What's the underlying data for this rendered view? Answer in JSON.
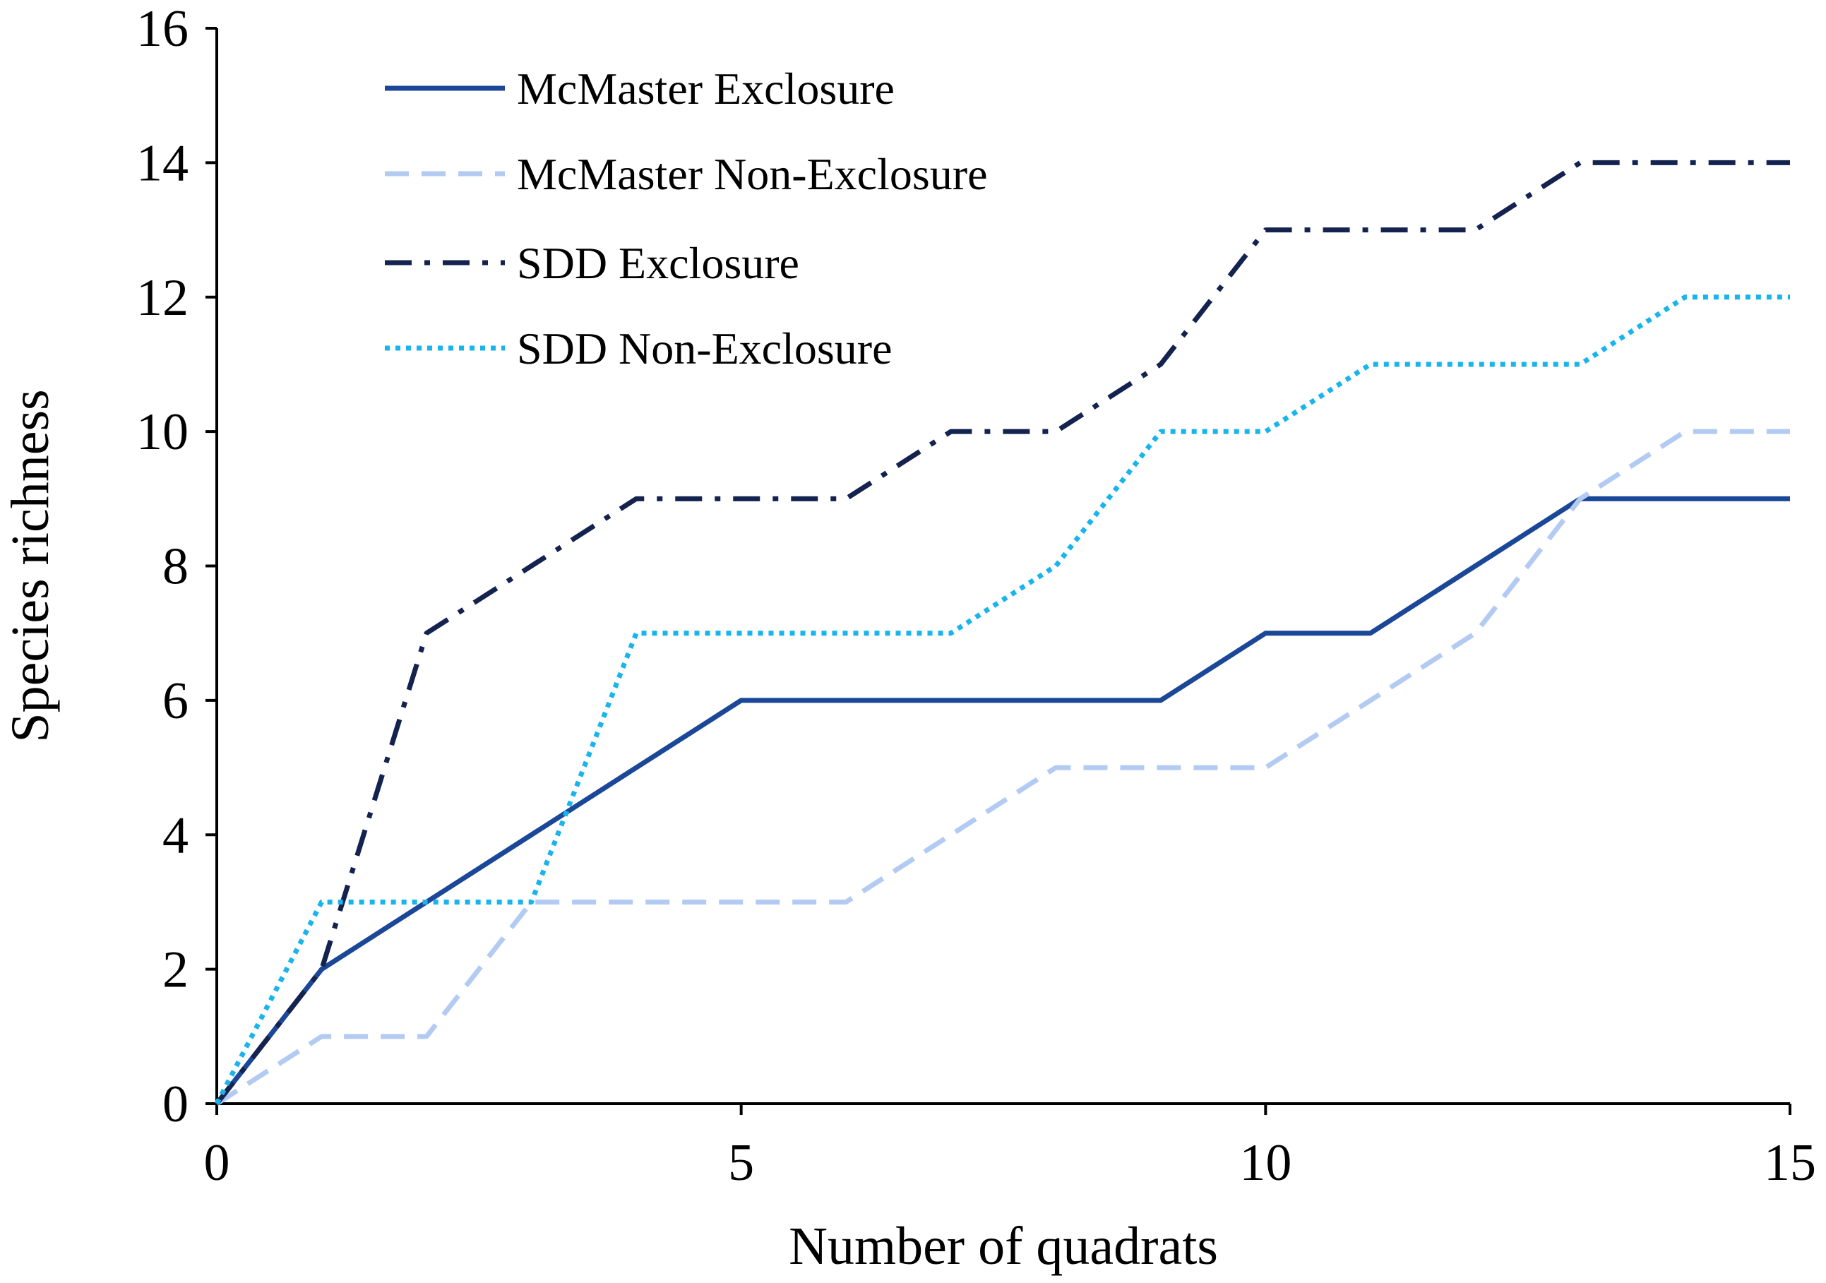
{
  "chart_data": {
    "type": "line",
    "title": "",
    "xlabel": "Number of quadrats",
    "ylabel": "Species richness",
    "xlim": [
      0,
      15
    ],
    "ylim": [
      0,
      16
    ],
    "xticks": [
      0,
      5,
      10,
      15
    ],
    "yticks": [
      0,
      2,
      4,
      6,
      8,
      10,
      12,
      14,
      16
    ],
    "grid": false,
    "legend_position": "top-left",
    "x": [
      0,
      1,
      2,
      3,
      4,
      5,
      6,
      7,
      8,
      9,
      10,
      11,
      12,
      13,
      14,
      15
    ],
    "series": [
      {
        "name": "McMaster Exclosure",
        "values": [
          0,
          2,
          3,
          4,
          5,
          6,
          6,
          6,
          6,
          6,
          7,
          7,
          8,
          9,
          9,
          9
        ],
        "color": "#1a4797",
        "style": "solid"
      },
      {
        "name": "McMaster Non-Exclosure",
        "values": [
          0,
          1,
          1,
          3,
          3,
          3,
          3,
          4,
          5,
          5,
          5,
          6,
          7,
          9,
          10,
          10
        ],
        "color": "#b3cbf3",
        "style": "dashed"
      },
      {
        "name": "SDD Exclosure",
        "values": [
          0,
          2,
          7,
          8,
          9,
          9,
          9,
          10,
          10,
          11,
          13,
          13,
          13,
          14,
          14,
          14
        ],
        "color": "#14224f",
        "style": "dashdot"
      },
      {
        "name": "SDD Non-Exclosure",
        "values": [
          0,
          3,
          3,
          3,
          7,
          7,
          7,
          7,
          8,
          10,
          10,
          11,
          11,
          11,
          12,
          12
        ],
        "color": "#18b4ec",
        "style": "dotted"
      }
    ]
  }
}
